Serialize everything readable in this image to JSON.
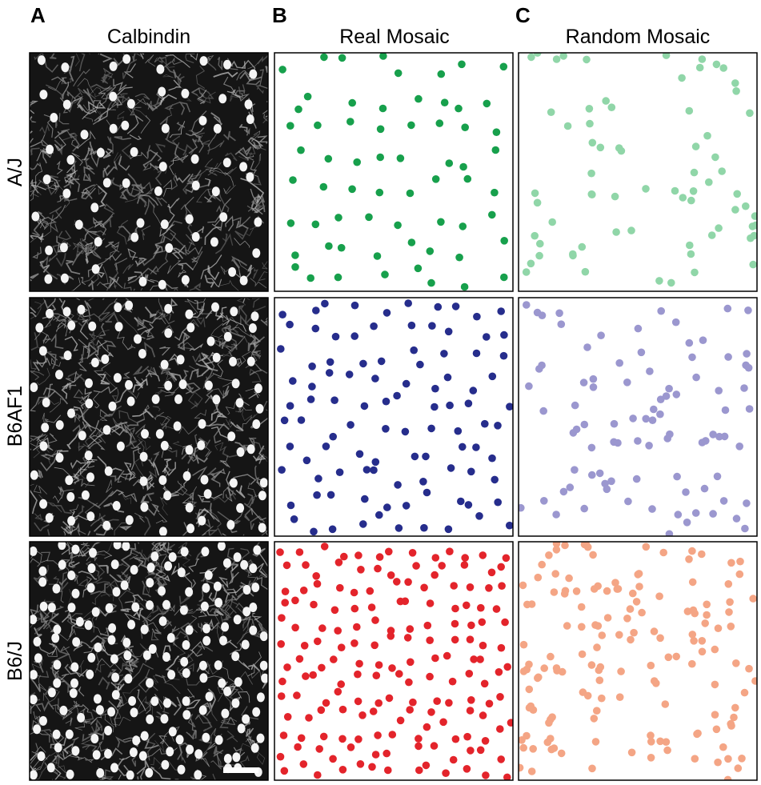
{
  "figure": {
    "panel_labels": [
      "A",
      "B",
      "C"
    ],
    "column_titles": [
      "Calbindin",
      "Real Mosaic",
      "Random Mosaic"
    ],
    "row_labels": [
      "A/J",
      "B6AF1",
      "B6/J"
    ]
  }
}
